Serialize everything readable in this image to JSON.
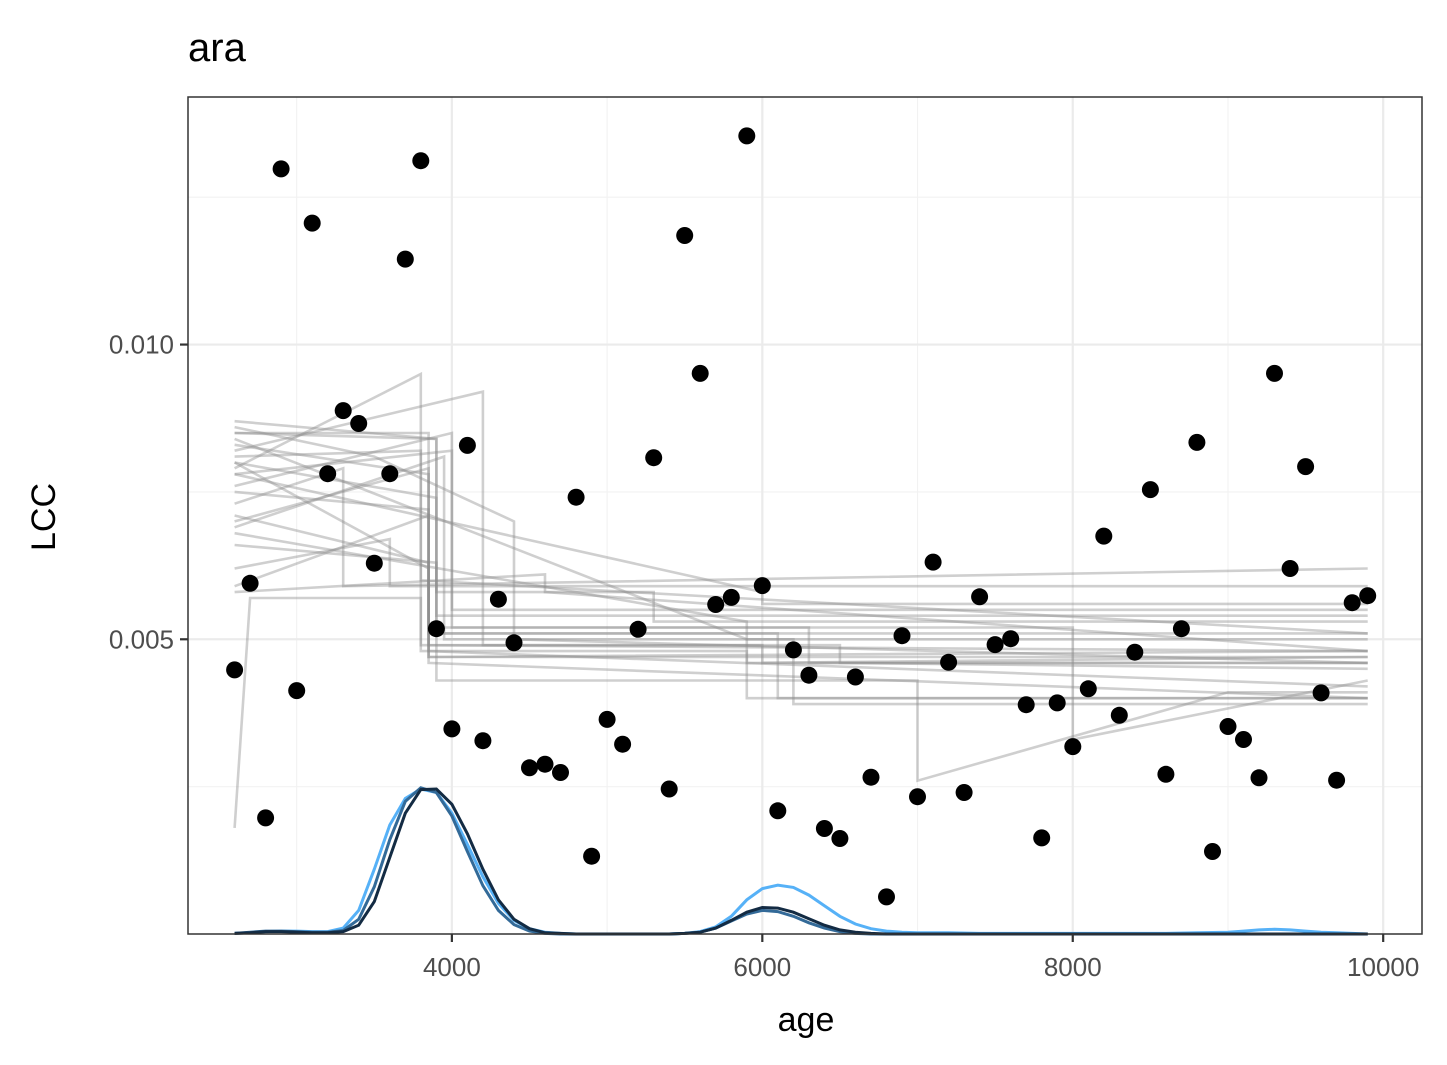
{
  "chart_data": {
    "type": "scatter",
    "title": "ara",
    "xlabel": "age",
    "ylabel": "LCC",
    "xlim": [
      2300,
      10250
    ],
    "ylim": [
      0,
      0.0142
    ],
    "x_ticks": [
      4000,
      6000,
      8000,
      10000
    ],
    "x_tick_labels": [
      "4000",
      "6000",
      "8000",
      "10000"
    ],
    "y_ticks": [
      0.005,
      0.01
    ],
    "y_tick_labels": [
      "0.005",
      "0.010"
    ],
    "grid": true,
    "legend": "none",
    "point_color": "#000000",
    "points": {
      "x": [
        2600,
        2700,
        2800,
        2900,
        3000,
        3100,
        3200,
        3300,
        3400,
        3500,
        3600,
        3700,
        3800,
        3900,
        4000,
        4100,
        4200,
        4300,
        4400,
        4500,
        4600,
        4700,
        4800,
        4900,
        5000,
        5100,
        5200,
        5300,
        5400,
        5500,
        5600,
        5700,
        5800,
        5900,
        6000,
        6100,
        6200,
        6300,
        6400,
        6500,
        6600,
        6700,
        6800,
        6900,
        7000,
        7100,
        7200,
        7300,
        7400,
        7500,
        7600,
        7700,
        7800,
        7900,
        8000,
        8100,
        8200,
        8300,
        8400,
        8500,
        8600,
        8700,
        8800,
        8900,
        9000,
        9100,
        9200,
        9300,
        9400,
        9500,
        9600,
        9700,
        9800,
        9900
      ],
      "y": [
        0.00448,
        0.00595,
        0.00197,
        0.01298,
        0.00413,
        0.01206,
        0.00781,
        0.00888,
        0.00866,
        0.00629,
        0.00781,
        0.01145,
        0.01312,
        0.00518,
        0.00348,
        0.00829,
        0.00328,
        0.00568,
        0.00494,
        0.00282,
        0.00288,
        0.00274,
        0.00741,
        0.00132,
        0.00364,
        0.00322,
        0.00517,
        0.00808,
        0.00246,
        0.01185,
        0.00951,
        0.00559,
        0.00571,
        0.01354,
        0.00591,
        0.00209,
        0.00482,
        0.00439,
        0.00179,
        0.00162,
        0.00436,
        0.00266,
        0.00063,
        0.00506,
        0.00233,
        0.00631,
        0.00461,
        0.0024,
        0.00572,
        0.00491,
        0.00501,
        0.00389,
        0.00163,
        0.00392,
        0.00318,
        0.00416,
        0.00675,
        0.00371,
        0.00478,
        0.00754,
        0.00271,
        0.00518,
        0.00834,
        0.0014,
        0.00352,
        0.0033,
        0.00265,
        0.00951,
        0.0062,
        0.00793,
        0.00409,
        0.00261,
        0.00562,
        0.00574
      ]
    },
    "step_line_color": "#8c8c8c",
    "step_lines": [
      [
        [
          2600,
          0.0018
        ],
        [
          2700,
          0.0057
        ],
        [
          3800,
          0.0057
        ],
        [
          3800,
          0.0049
        ],
        [
          6000,
          0.0049
        ],
        [
          6000,
          0.0046
        ],
        [
          9900,
          0.0046
        ]
      ],
      [
        [
          2600,
          0.0079
        ],
        [
          3800,
          0.0095
        ],
        [
          3800,
          0.0048
        ],
        [
          5900,
          0.0048
        ],
        [
          5900,
          0.0046
        ],
        [
          9900,
          0.0047
        ]
      ],
      [
        [
          2600,
          0.0087
        ],
        [
          3900,
          0.0084
        ],
        [
          3900,
          0.0043
        ],
        [
          7000,
          0.0043
        ],
        [
          7000,
          0.0026
        ],
        [
          9000,
          0.0041
        ],
        [
          9900,
          0.0041
        ]
      ],
      [
        [
          2600,
          0.0082
        ],
        [
          4200,
          0.0092
        ],
        [
          4200,
          0.0049
        ],
        [
          6500,
          0.0049
        ],
        [
          6500,
          0.0046
        ],
        [
          9900,
          0.0045
        ]
      ],
      [
        [
          2600,
          0.0062
        ],
        [
          3600,
          0.0067
        ],
        [
          3600,
          0.0059
        ],
        [
          9900,
          0.0059
        ]
      ],
      [
        [
          2600,
          0.0071
        ],
        [
          3850,
          0.0063
        ],
        [
          3850,
          0.0047
        ],
        [
          9900,
          0.0048
        ]
      ],
      [
        [
          2600,
          0.0078
        ],
        [
          4000,
          0.0082
        ],
        [
          4000,
          0.0055
        ],
        [
          9900,
          0.0055
        ]
      ],
      [
        [
          2600,
          0.0059
        ],
        [
          2600,
          0.0059
        ],
        [
          3850,
          0.0071
        ],
        [
          3850,
          0.0046
        ],
        [
          9900,
          0.004
        ]
      ],
      [
        [
          2600,
          0.0086
        ],
        [
          3500,
          0.0081
        ],
        [
          4400,
          0.007
        ],
        [
          4400,
          0.005
        ],
        [
          9900,
          0.0046
        ]
      ],
      [
        [
          2600,
          0.0085
        ],
        [
          3900,
          0.0084
        ],
        [
          3900,
          0.0051
        ],
        [
          6100,
          0.0051
        ],
        [
          6100,
          0.004
        ],
        [
          9900,
          0.004
        ]
      ],
      [
        [
          2600,
          0.0084
        ],
        [
          5900,
          0.005
        ],
        [
          5900,
          0.004
        ],
        [
          9900,
          0.004
        ]
      ],
      [
        [
          2600,
          0.008
        ],
        [
          3900,
          0.0074
        ],
        [
          3900,
          0.0058
        ],
        [
          5300,
          0.0058
        ],
        [
          5300,
          0.0053
        ],
        [
          9900,
          0.0053
        ]
      ],
      [
        [
          2600,
          0.0073
        ],
        [
          3300,
          0.0079
        ],
        [
          3300,
          0.0059
        ],
        [
          9900,
          0.0062
        ]
      ],
      [
        [
          2600,
          0.0083
        ],
        [
          3850,
          0.0078
        ],
        [
          3850,
          0.0048
        ],
        [
          9900,
          0.0042
        ]
      ],
      [
        [
          2600,
          0.0076
        ],
        [
          4000,
          0.0085
        ],
        [
          4000,
          0.0052
        ],
        [
          6300,
          0.0052
        ],
        [
          6300,
          0.0046
        ],
        [
          9900,
          0.0046
        ]
      ],
      [
        [
          2600,
          0.0081
        ],
        [
          3800,
          0.0082
        ],
        [
          3800,
          0.006
        ],
        [
          9900,
          0.0051
        ]
      ],
      [
        [
          2600,
          0.007
        ],
        [
          3850,
          0.0079
        ],
        [
          3850,
          0.0052
        ],
        [
          8000,
          0.0052
        ],
        [
          8000,
          0.0033
        ],
        [
          9900,
          0.0043
        ]
      ],
      [
        [
          2600,
          0.0069
        ],
        [
          3950,
          0.0081
        ],
        [
          3950,
          0.005
        ],
        [
          6200,
          0.005
        ],
        [
          6200,
          0.0039
        ],
        [
          9900,
          0.0039
        ]
      ],
      [
        [
          2600,
          0.0075
        ],
        [
          3850,
          0.0072
        ],
        [
          3850,
          0.0049
        ],
        [
          9900,
          0.0048
        ]
      ],
      [
        [
          2600,
          0.0078
        ],
        [
          6000,
          0.0058
        ],
        [
          6000,
          0.0056
        ],
        [
          9900,
          0.0056
        ]
      ],
      [
        [
          2600,
          0.0068
        ],
        [
          5900,
          0.0053
        ],
        [
          5900,
          0.005
        ],
        [
          9900,
          0.005
        ]
      ],
      [
        [
          2600,
          0.0066
        ],
        [
          3900,
          0.0063
        ],
        [
          3900,
          0.0054
        ],
        [
          9900,
          0.0054
        ]
      ],
      [
        [
          2600,
          0.0058
        ],
        [
          2600,
          0.0058
        ],
        [
          4600,
          0.0061
        ],
        [
          4600,
          0.0058
        ],
        [
          9900,
          0.0048
        ]
      ],
      [
        [
          2600,
          0.008
        ],
        [
          3850,
          0.0062
        ],
        [
          3850,
          0.0051
        ],
        [
          9900,
          0.0051
        ]
      ],
      [
        [
          2600,
          0.0085
        ],
        [
          3850,
          0.0085
        ],
        [
          3850,
          0.0047
        ],
        [
          9900,
          0.0047
        ]
      ]
    ],
    "density_series": [
      {
        "color": "#56b1f7",
        "x": [
          2600,
          2700,
          2800,
          2900,
          3000,
          3100,
          3200,
          3300,
          3400,
          3500,
          3600,
          3700,
          3800,
          3900,
          4000,
          4100,
          4200,
          4300,
          4400,
          4500,
          4600,
          4700,
          4800,
          4900,
          5000,
          5100,
          5200,
          5300,
          5400,
          5500,
          5600,
          5700,
          5800,
          5900,
          6000,
          6100,
          6200,
          6300,
          6400,
          6500,
          6600,
          6700,
          6800,
          6900,
          7000,
          7200,
          7400,
          7600,
          7800,
          8000,
          8200,
          8400,
          8600,
          8800,
          9000,
          9100,
          9200,
          9300,
          9400,
          9500,
          9600,
          9700,
          9800,
          9900
        ],
        "y": [
          1e-05,
          2e-05,
          4e-05,
          5e-05,
          5e-05,
          4e-05,
          4e-05,
          0.0001,
          0.0004,
          0.0011,
          0.00185,
          0.0023,
          0.00246,
          0.0024,
          0.00205,
          0.00152,
          0.00097,
          0.00052,
          0.00023,
          9e-05,
          3e-05,
          1e-05,
          0,
          0,
          0,
          0,
          0,
          0,
          0,
          1e-05,
          4e-05,
          0.00012,
          0.0003,
          0.00058,
          0.00077,
          0.00083,
          0.00079,
          0.00066,
          0.00048,
          0.0003,
          0.00017,
          9e-05,
          5e-05,
          3e-05,
          2e-05,
          2e-05,
          1e-05,
          1e-05,
          1e-05,
          1e-05,
          1e-05,
          1e-05,
          1e-05,
          2e-05,
          3e-05,
          5e-05,
          7e-05,
          8e-05,
          7e-05,
          5e-05,
          3e-05,
          2e-05,
          1e-05,
          0
        ]
      },
      {
        "color": "#336a98",
        "x": [
          2600,
          2700,
          2800,
          2900,
          3000,
          3100,
          3200,
          3300,
          3400,
          3500,
          3600,
          3700,
          3800,
          3900,
          4000,
          4100,
          4200,
          4300,
          4400,
          4500,
          4600,
          4700,
          4800,
          4900,
          5000,
          5400,
          5500,
          5600,
          5700,
          5800,
          5900,
          6000,
          6100,
          6200,
          6300,
          6400,
          6500,
          6600,
          6700,
          6800,
          7000,
          8000,
          9000,
          9900
        ],
        "y": [
          1e-05,
          3e-05,
          5e-05,
          5e-05,
          4e-05,
          3e-05,
          3e-05,
          6e-05,
          0.00025,
          0.0008,
          0.0016,
          0.00225,
          0.00248,
          0.0024,
          0.002,
          0.0014,
          0.00082,
          0.0004,
          0.00016,
          5e-05,
          1e-05,
          0,
          0,
          0,
          0,
          0,
          1e-05,
          3e-05,
          0.0001,
          0.00022,
          0.00034,
          0.0004,
          0.00038,
          0.0003,
          0.00019,
          0.0001,
          4e-05,
          1e-05,
          0,
          0,
          0,
          0,
          0,
          0
        ]
      },
      {
        "color": "#132b43",
        "x": [
          2600,
          2700,
          2800,
          2900,
          3000,
          3100,
          3200,
          3300,
          3400,
          3500,
          3600,
          3700,
          3800,
          3900,
          4000,
          4100,
          4200,
          4300,
          4400,
          4500,
          4600,
          4700,
          4800,
          4900,
          5000,
          5400,
          5500,
          5600,
          5700,
          5800,
          5900,
          6000,
          6100,
          6200,
          6300,
          6400,
          6500,
          6600,
          6700,
          6800,
          7000,
          8000,
          9000,
          9900
        ],
        "y": [
          1e-05,
          2e-05,
          4e-05,
          4e-05,
          3e-05,
          2e-05,
          2e-05,
          4e-05,
          0.00015,
          0.00055,
          0.0013,
          0.00205,
          0.00245,
          0.00246,
          0.0022,
          0.0017,
          0.0011,
          0.00058,
          0.00025,
          9e-05,
          2e-05,
          1e-05,
          0,
          0,
          0,
          0,
          1e-05,
          3e-05,
          0.0001,
          0.00023,
          0.00037,
          0.00045,
          0.00044,
          0.00037,
          0.00026,
          0.00015,
          7e-05,
          3e-05,
          1e-05,
          0,
          0,
          0,
          0,
          0
        ]
      }
    ]
  }
}
